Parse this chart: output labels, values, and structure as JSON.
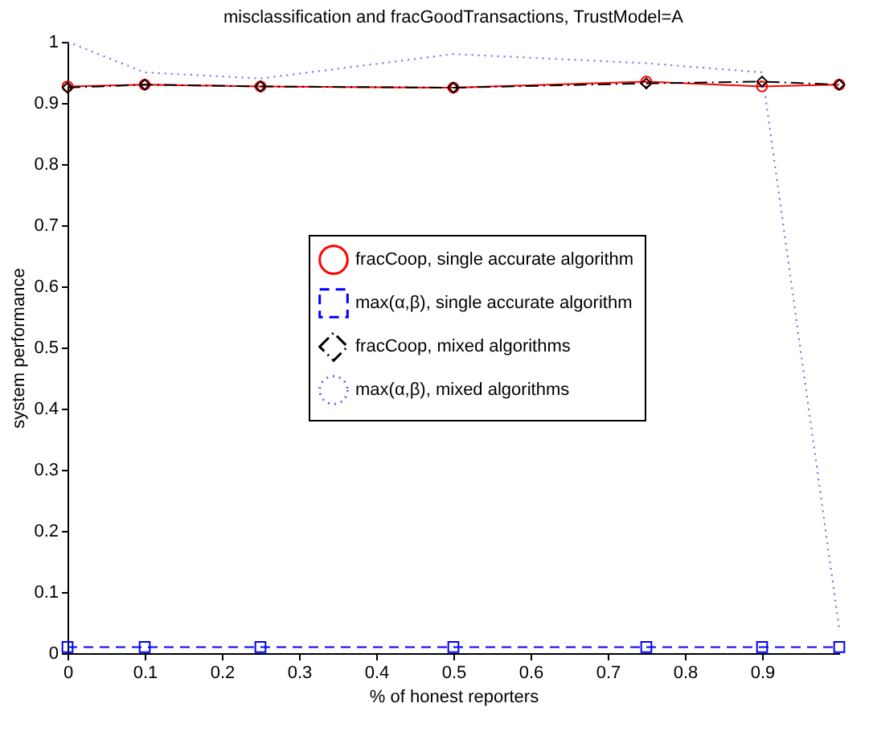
{
  "chart_data": {
    "type": "line",
    "title": "misclassification and fracGoodTransactions, TrustModel=A",
    "xlabel": "% of honest reporters",
    "ylabel": "system performance",
    "x": [
      0,
      0.1,
      0.25,
      0.5,
      0.75,
      0.9,
      1
    ],
    "series": [
      {
        "name": "fracCoop, single accurate algorithm",
        "color": "#ff0000",
        "marker": "circle",
        "line_style": "solid",
        "values": [
          0.927,
          0.93,
          0.927,
          0.925,
          0.935,
          0.927,
          0.93
        ]
      },
      {
        "name": "max(α,β), single accurate algorithm",
        "color": "#0000ff",
        "marker": "square",
        "line_style": "dashed",
        "values": [
          0.01,
          0.01,
          0.01,
          0.01,
          0.01,
          0.01,
          0.01
        ]
      },
      {
        "name": "fracCoop, mixed algorithms",
        "color": "#000000",
        "marker": "diamond",
        "line_style": "dashdot",
        "values": [
          0.925,
          0.93,
          0.927,
          0.925,
          0.932,
          0.935,
          0.93
        ]
      },
      {
        "name": "max(α,β), mixed algorithms",
        "color": "#6666ff",
        "marker": "none",
        "line_style": "dotted",
        "values": [
          1.0,
          0.95,
          0.94,
          0.98,
          0.965,
          0.95,
          0.04
        ]
      }
    ],
    "xlim": [
      0,
      1
    ],
    "xticks": [
      0,
      0.1,
      0.2,
      0.3,
      0.4,
      0.5,
      0.6,
      0.7,
      0.8,
      0.9
    ],
    "ylim": [
      0,
      1
    ],
    "yticks": [
      0,
      0.1,
      0.2,
      0.3,
      0.4,
      0.5,
      0.6,
      0.7,
      0.8,
      0.9,
      1
    ],
    "grid": false,
    "legend": "center"
  }
}
